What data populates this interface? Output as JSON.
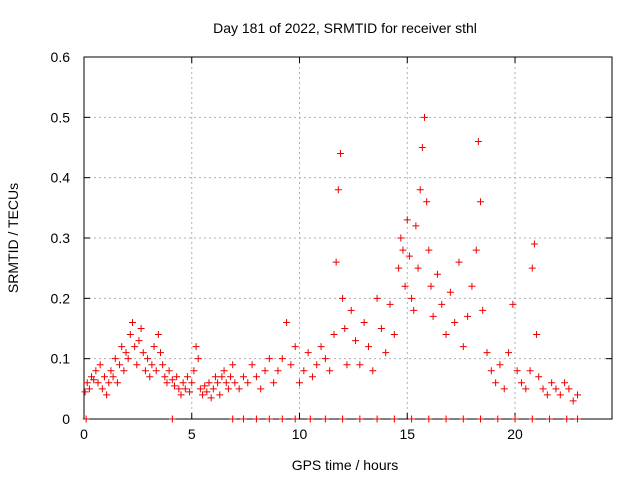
{
  "chart_data": {
    "type": "scatter",
    "title": "Day 181 of 2022, SRMTID for receiver sthl",
    "xlabel": "GPS time / hours",
    "ylabel": "SRMTID / TECUs",
    "xlim": [
      0,
      24.5
    ],
    "ylim": [
      0,
      0.6
    ],
    "xticks": [
      0,
      5,
      10,
      15,
      20
    ],
    "xtick_labels": [
      "0",
      "5",
      "10",
      "15",
      "20"
    ],
    "yticks": [
      0,
      0.1,
      0.2,
      0.3,
      0.4,
      0.5,
      0.6
    ],
    "ytick_labels": [
      "0",
      "0.1",
      "0.2",
      "0.3",
      "0.4",
      "0.5",
      "0.6"
    ],
    "grid": true,
    "marker": "plus",
    "color": "#ee0000",
    "series": [
      {
        "name": "SRMTID",
        "points": [
          [
            0.05,
            0.045
          ],
          [
            0.15,
            0.06
          ],
          [
            0.25,
            0.05
          ],
          [
            0.35,
            0.07
          ],
          [
            0.45,
            0.065
          ],
          [
            0.55,
            0.08
          ],
          [
            0.65,
            0.06
          ],
          [
            0.75,
            0.09
          ],
          [
            0.85,
            0.05
          ],
          [
            0.95,
            0.07
          ],
          [
            1.05,
            0.04
          ],
          [
            1.15,
            0.06
          ],
          [
            1.25,
            0.08
          ],
          [
            1.35,
            0.07
          ],
          [
            1.45,
            0.1
          ],
          [
            1.55,
            0.06
          ],
          [
            1.65,
            0.09
          ],
          [
            1.75,
            0.12
          ],
          [
            1.85,
            0.08
          ],
          [
            1.95,
            0.11
          ],
          [
            2.05,
            0.1
          ],
          [
            2.15,
            0.14
          ],
          [
            2.25,
            0.16
          ],
          [
            2.35,
            0.12
          ],
          [
            2.45,
            0.09
          ],
          [
            2.55,
            0.13
          ],
          [
            2.65,
            0.15
          ],
          [
            2.75,
            0.11
          ],
          [
            2.85,
            0.08
          ],
          [
            2.95,
            0.1
          ],
          [
            3.05,
            0.07
          ],
          [
            3.15,
            0.09
          ],
          [
            3.25,
            0.12
          ],
          [
            3.35,
            0.08
          ],
          [
            3.45,
            0.14
          ],
          [
            3.55,
            0.11
          ],
          [
            3.65,
            0.09
          ],
          [
            3.75,
            0.07
          ],
          [
            3.85,
            0.06
          ],
          [
            3.95,
            0.08
          ],
          [
            4.1,
            0.065
          ],
          [
            4.2,
            0.055
          ],
          [
            4.3,
            0.07
          ],
          [
            4.4,
            0.05
          ],
          [
            4.5,
            0.04
          ],
          [
            4.6,
            0.06
          ],
          [
            4.7,
            0.05
          ],
          [
            4.8,
            0.07
          ],
          [
            4.9,
            0.045
          ],
          [
            5.0,
            0.06
          ],
          [
            5.1,
            0.08
          ],
          [
            5.2,
            0.12
          ],
          [
            5.3,
            0.1
          ],
          [
            5.4,
            0.05
          ],
          [
            5.5,
            0.04
          ],
          [
            5.6,
            0.055
          ],
          [
            5.7,
            0.045
          ],
          [
            5.8,
            0.06
          ],
          [
            5.9,
            0.035
          ],
          [
            6.0,
            0.05
          ],
          [
            6.1,
            0.07
          ],
          [
            6.2,
            0.06
          ],
          [
            6.3,
            0.04
          ],
          [
            6.4,
            0.07
          ],
          [
            6.5,
            0.08
          ],
          [
            6.6,
            0.06
          ],
          [
            6.7,
            0.05
          ],
          [
            6.8,
            0.07
          ],
          [
            6.9,
            0.09
          ],
          [
            7.0,
            0.06
          ],
          [
            7.2,
            0.05
          ],
          [
            7.4,
            0.07
          ],
          [
            7.6,
            0.06
          ],
          [
            7.8,
            0.09
          ],
          [
            8.0,
            0.07
          ],
          [
            8.2,
            0.05
          ],
          [
            8.4,
            0.08
          ],
          [
            8.6,
            0.1
          ],
          [
            8.8,
            0.06
          ],
          [
            9.0,
            0.08
          ],
          [
            9.2,
            0.1
          ],
          [
            9.4,
            0.16
          ],
          [
            9.6,
            0.09
          ],
          [
            9.8,
            0.12
          ],
          [
            10.0,
            0.06
          ],
          [
            10.2,
            0.08
          ],
          [
            10.4,
            0.11
          ],
          [
            10.6,
            0.07
          ],
          [
            10.8,
            0.09
          ],
          [
            11.0,
            0.12
          ],
          [
            11.2,
            0.1
          ],
          [
            11.4,
            0.08
          ],
          [
            11.6,
            0.14
          ],
          [
            11.7,
            0.26
          ],
          [
            11.8,
            0.38
          ],
          [
            11.9,
            0.44
          ],
          [
            12.0,
            0.2
          ],
          [
            12.1,
            0.15
          ],
          [
            12.2,
            0.09
          ],
          [
            12.4,
            0.18
          ],
          [
            12.6,
            0.13
          ],
          [
            12.8,
            0.09
          ],
          [
            13.0,
            0.16
          ],
          [
            13.2,
            0.12
          ],
          [
            13.4,
            0.08
          ],
          [
            13.6,
            0.2
          ],
          [
            13.8,
            0.15
          ],
          [
            14.0,
            0.11
          ],
          [
            14.2,
            0.19
          ],
          [
            14.4,
            0.14
          ],
          [
            14.6,
            0.25
          ],
          [
            14.7,
            0.3
          ],
          [
            14.8,
            0.28
          ],
          [
            14.9,
            0.22
          ],
          [
            15.0,
            0.33
          ],
          [
            15.1,
            0.27
          ],
          [
            15.2,
            0.2
          ],
          [
            15.3,
            0.18
          ],
          [
            15.4,
            0.32
          ],
          [
            15.5,
            0.25
          ],
          [
            15.6,
            0.38
          ],
          [
            15.7,
            0.45
          ],
          [
            15.8,
            0.5
          ],
          [
            15.9,
            0.36
          ],
          [
            16.0,
            0.28
          ],
          [
            16.1,
            0.22
          ],
          [
            16.2,
            0.17
          ],
          [
            16.4,
            0.24
          ],
          [
            16.6,
            0.19
          ],
          [
            16.8,
            0.14
          ],
          [
            17.0,
            0.21
          ],
          [
            17.2,
            0.16
          ],
          [
            17.4,
            0.26
          ],
          [
            17.6,
            0.12
          ],
          [
            17.8,
            0.17
          ],
          [
            18.0,
            0.22
          ],
          [
            18.2,
            0.28
          ],
          [
            18.3,
            0.46
          ],
          [
            18.4,
            0.36
          ],
          [
            18.5,
            0.18
          ],
          [
            18.7,
            0.11
          ],
          [
            18.9,
            0.08
          ],
          [
            19.1,
            0.06
          ],
          [
            19.3,
            0.09
          ],
          [
            19.5,
            0.05
          ],
          [
            19.7,
            0.11
          ],
          [
            19.9,
            0.19
          ],
          [
            20.1,
            0.08
          ],
          [
            20.3,
            0.06
          ],
          [
            20.5,
            0.05
          ],
          [
            20.7,
            0.08
          ],
          [
            20.8,
            0.25
          ],
          [
            20.9,
            0.29
          ],
          [
            21.0,
            0.14
          ],
          [
            21.1,
            0.07
          ],
          [
            21.3,
            0.05
          ],
          [
            21.5,
            0.04
          ],
          [
            21.7,
            0.06
          ],
          [
            21.9,
            0.05
          ],
          [
            22.1,
            0.04
          ],
          [
            22.3,
            0.06
          ],
          [
            22.5,
            0.05
          ],
          [
            22.7,
            0.03
          ],
          [
            22.9,
            0.04
          ],
          [
            0.1,
            0
          ],
          [
            4.1,
            0
          ],
          [
            6.9,
            0
          ],
          [
            7.4,
            0
          ],
          [
            8.0,
            0
          ],
          [
            8.6,
            0
          ],
          [
            9.2,
            0
          ],
          [
            9.8,
            0
          ],
          [
            10.5,
            0
          ],
          [
            11.2,
            0
          ],
          [
            12.0,
            0
          ],
          [
            12.8,
            0
          ],
          [
            13.6,
            0
          ],
          [
            14.4,
            0
          ],
          [
            15.2,
            0
          ],
          [
            16.0,
            0
          ],
          [
            16.8,
            0
          ],
          [
            17.6,
            0
          ],
          [
            18.4,
            0
          ],
          [
            19.2,
            0
          ],
          [
            20.0,
            0
          ],
          [
            20.8,
            0
          ],
          [
            21.6,
            0
          ],
          [
            22.4,
            0
          ],
          [
            22.9,
            0
          ]
        ]
      }
    ]
  }
}
